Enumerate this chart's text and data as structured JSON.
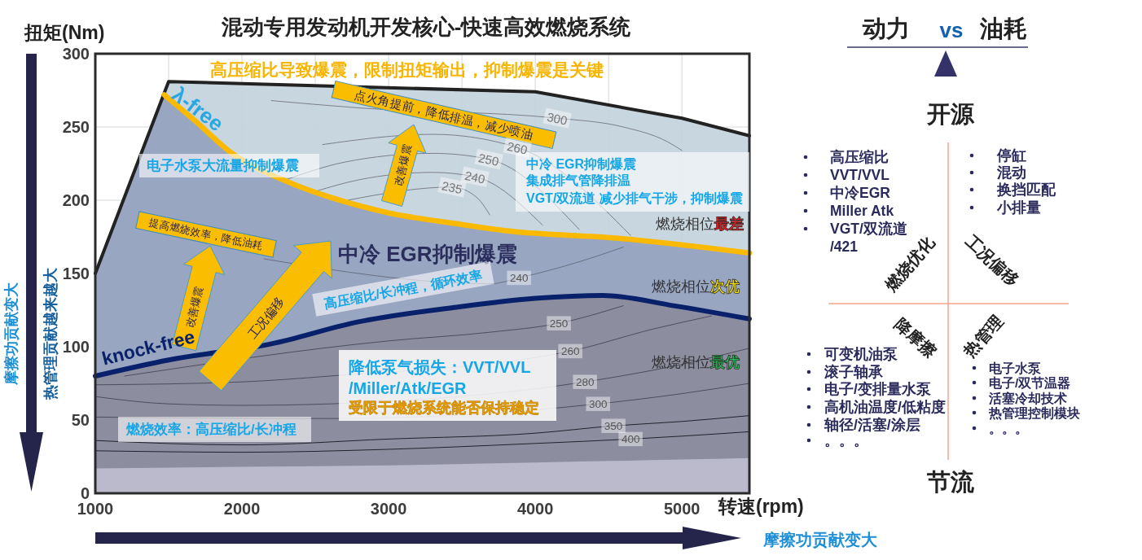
{
  "chart_data": [
    {
      "type": "line",
      "title": "混动专用发动机开发核心-快速高效燃烧系统",
      "xlabel": "转速(rpm)",
      "ylabel": "扭矩(Nm)",
      "xlim": [
        1000,
        5460
      ],
      "ylim": [
        0,
        300
      ],
      "xticks": [
        1000,
        {
          "value": 1500,
          "label": null
        },
        2000,
        {
          "value": 2500,
          "label": null
        },
        3000,
        {
          "value": 3500,
          "label": null
        },
        4000,
        {
          "value": 4500,
          "label": null
        },
        5000
      ],
      "yticks": [
        0,
        50,
        100,
        150,
        200,
        250,
        300
      ],
      "grid": true,
      "series": [
        {
          "type": "area",
          "color": "#bbbacd",
          "x": [
            1000,
            2000,
            3000,
            4000,
            5000,
            5460
          ],
          "values": [
            17,
            18,
            19,
            21,
            23,
            24
          ]
        },
        {
          "color": "#7a7f8c",
          "x": [
            2200,
            2800,
            4150,
            4600,
            4900,
            5000
          ],
          "values": [
            268,
            263,
            256,
            250,
            240,
            234
          ]
        },
        {
          "color": "#7a7f8c",
          "x": [
            2550,
            3300,
            3878,
            4650
          ],
          "values": [
            238,
            245,
            236,
            176
          ]
        },
        {
          "color": "#7a7f8c",
          "x": [
            2300,
            2700,
            3300,
            3683,
            4300
          ],
          "values": [
            214,
            226,
            232,
            228,
            180
          ]
        },
        {
          "color": "#7a7f8c",
          "x": [
            2500,
            2800,
            3300,
            3589,
            4050
          ],
          "values": [
            206,
            214,
            219,
            216,
            183
          ]
        },
        {
          "color": "#7a7f8c",
          "x": [
            2720,
            3433,
            3600,
            3690
          ],
          "values": [
            200,
            209,
            202,
            190
          ]
        },
        {
          "color": "#6a6f80",
          "x": [
            2150,
            3700,
            3889,
            4300,
            4600
          ],
          "values": [
            160,
            143,
            147,
            158,
            168
          ]
        },
        {
          "color": "#4c4e5c",
          "x": [
            1200,
            3000,
            3700,
            4161,
            4600
          ],
          "values": [
            80,
            104,
            110,
            116,
            128
          ]
        },
        {
          "color": "#4c4e5c",
          "x": [
            1000,
            2000,
            2600,
            4239,
            4800,
            5200
          ],
          "values": [
            74,
            76,
            80,
            97,
            112,
            121
          ]
        },
        {
          "color": "#4c4e5c",
          "x": [
            1000,
            1500,
            2000,
            2600,
            4339,
            5000,
            5460
          ],
          "values": [
            66,
            61,
            60,
            61,
            76,
            88,
            99
          ]
        },
        {
          "color": "#4c4e5c",
          "x": [
            1000,
            2600,
            4428,
            5000,
            5460
          ],
          "values": [
            52,
            51,
            61,
            68,
            75
          ]
        },
        {
          "color": "#22222c",
          "x": [
            1000,
            2000,
            3000,
            4000,
            4533,
            5000,
            5460
          ],
          "values": [
            36,
            33,
            37,
            41,
            46,
            49,
            53
          ]
        },
        {
          "color": "#22222c",
          "x": [
            1000,
            2000,
            3000,
            4000,
            4650,
            5000,
            5460
          ],
          "values": [
            29,
            28,
            30,
            34,
            37,
            39,
            42
          ]
        },
        {
          "color": "#222222",
          "x": [
            1000,
            1500,
            4000,
            5000,
            5460
          ],
          "values": [
            150,
            281,
            274,
            256,
            244
          ]
        },
        {
          "name": "λ-free",
          "color": "#fbb900",
          "x": [
            1470,
            1683,
            1906,
            2350,
            2572,
            3017,
            3461,
            3817,
            4572,
            5460
          ],
          "values": [
            272,
            254,
            234,
            211,
            203,
            191,
            184,
            179,
            174,
            164
          ]
        },
        {
          "name": "knock-free",
          "color": "#08216a",
          "x": [
            1000,
            1500,
            2200,
            2794,
            3461,
            4000,
            4461,
            4944,
            5460
          ],
          "values": [
            80,
            91,
            102,
            117,
            127,
            133,
            135,
            128,
            119
          ]
        }
      ],
      "annotations": [
        "高压缩比导致爆震，限制扭矩输出，抑制爆震是关键",
        "点火角提前，降低排温，减少喷油",
        "改善爆震",
        "电子水泵大流量抑制爆震",
        "中冷 EGR抑制爆震",
        "集成排气管降排温",
        "VGT/双流道 减少排气干涉，抑制爆震",
        "燃烧相位",
        "最差",
        "提高燃烧效率，降低油耗",
        "改善爆震",
        "工况偏移",
        "中冷 EGR抑制爆震",
        "高压缩比/长冲程，循环效率",
        "燃烧相位",
        "次优",
        "降低泵气损失：VVT/VVL",
        "/Miller/Atk/EGR",
        "受限于燃烧系统能否保持稳定",
        "燃烧相位",
        "最优",
        "燃烧效率：高压缩比/长冲程",
        "摩擦功贡献变大",
        "热管理贡献越来越大",
        "摩擦功贡献变大",
        {
          "text": "300",
          "x": 4150,
          "y": 256
        },
        {
          "text": "260",
          "x": 3878,
          "y": 236
        },
        {
          "text": "250",
          "x": 3683,
          "y": 228
        },
        {
          "text": "240",
          "x": 3589,
          "y": 216
        },
        {
          "text": "235",
          "x": 3433,
          "y": 209
        },
        {
          "text": "240",
          "x": 3889,
          "y": 147
        },
        {
          "text": "250",
          "x": 4161,
          "y": 116
        },
        {
          "text": "260",
          "x": 4239,
          "y": 97
        },
        {
          "text": "280",
          "x": 4339,
          "y": 76
        },
        {
          "text": "300",
          "x": 4428,
          "y": 61
        },
        {
          "text": "350",
          "x": 4533,
          "y": 46
        },
        {
          "text": "400",
          "x": 4650,
          "y": 37
        }
      ]
    },
    {
      "type": "other",
      "annotations": [
        "动力",
        "vs",
        "油耗",
        "开源",
        "节流",
        "燃烧优化",
        "工况偏移",
        "降摩擦",
        "热管理",
        "高压缩比",
        "VVT/VVL",
        "中冷EGR",
        "Miller Atk",
        "VGT/双流道",
        "/421",
        "停缸",
        "混动",
        "换挡匹配",
        "小排量",
        "可变机油泵",
        "滚子轴承",
        "电子/变排量水泵",
        "高机油温度/低粘度",
        "轴径/活塞/涂层",
        "。。。",
        "电子水泵",
        "电子/双节温器",
        "活塞冷却技术",
        "热管理控制模块",
        "。。。"
      ]
    }
  ]
}
